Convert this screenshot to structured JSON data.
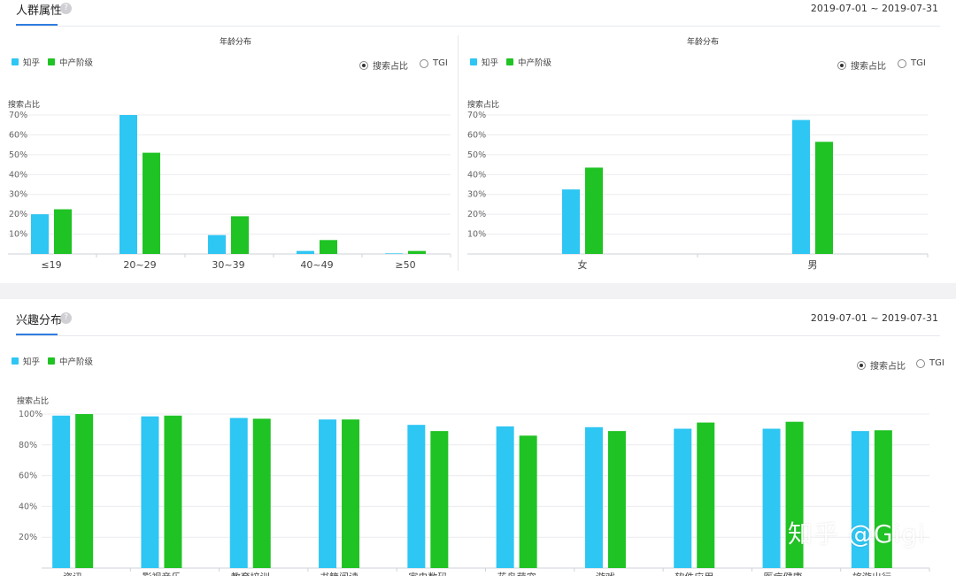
{
  "colors": {
    "zhihu": "#2ec6f3",
    "middle": "#1fc324",
    "accent": "#2f7de1"
  },
  "top_panel": {
    "title": "人群属性",
    "help": "?",
    "date_range": "2019-07-01 ~ 2019-07-31"
  },
  "bottom_panel": {
    "title": "兴趣分布",
    "help": "?",
    "date_range": "2019-07-01 ~ 2019-07-31"
  },
  "legend": {
    "series_a": "知乎",
    "series_b": "中产阶级"
  },
  "radio": {
    "option_a": "搜索占比",
    "option_b": "TGI",
    "selected": "搜索占比"
  },
  "watermark": "知乎 @Gigi",
  "chart_data": [
    {
      "type": "bar",
      "title": "年龄分布",
      "ylabel": "搜索占比",
      "categories": [
        "≤19",
        "20~29",
        "30~39",
        "40~49",
        "≥50"
      ],
      "series": [
        {
          "name": "知乎",
          "values": [
            20,
            70,
            9.5,
            1.5,
            0.3
          ]
        },
        {
          "name": "中产阶级",
          "values": [
            22.5,
            51,
            19,
            7,
            1.5
          ]
        }
      ],
      "ylim": [
        0,
        70
      ],
      "yticks": [
        "10%",
        "20%",
        "30%",
        "40%",
        "50%",
        "60%",
        "70%"
      ],
      "grid": true,
      "legend": "top-left"
    },
    {
      "type": "bar",
      "title": "年龄分布",
      "ylabel": "搜索占比",
      "categories": [
        "女",
        "男"
      ],
      "series": [
        {
          "name": "知乎",
          "values": [
            32.5,
            67.5
          ]
        },
        {
          "name": "中产阶级",
          "values": [
            43.5,
            56.5
          ]
        }
      ],
      "ylim": [
        0,
        70
      ],
      "yticks": [
        "10%",
        "20%",
        "30%",
        "40%",
        "50%",
        "60%",
        "70%"
      ],
      "grid": true,
      "legend": "top-left"
    },
    {
      "type": "bar",
      "title": "",
      "ylabel": "搜索占比",
      "categories": [
        "资讯",
        "影视音乐",
        "教育培训",
        "书籍阅读",
        "家电数码",
        "花鸟萌宠",
        "游戏",
        "软件应用",
        "医疗健康",
        "旅游出行"
      ],
      "series": [
        {
          "name": "知乎",
          "values": [
            99,
            98.5,
            97.5,
            96.5,
            93,
            92,
            91.5,
            90.5,
            90.5,
            89
          ]
        },
        {
          "name": "中产阶级",
          "values": [
            100,
            99,
            97,
            96.5,
            89,
            86,
            89,
            94.5,
            95,
            89.5
          ]
        }
      ],
      "ylim": [
        0,
        100
      ],
      "yticks": [
        "20%",
        "40%",
        "60%",
        "80%",
        "100%"
      ],
      "grid": true,
      "legend": "top-left"
    }
  ]
}
